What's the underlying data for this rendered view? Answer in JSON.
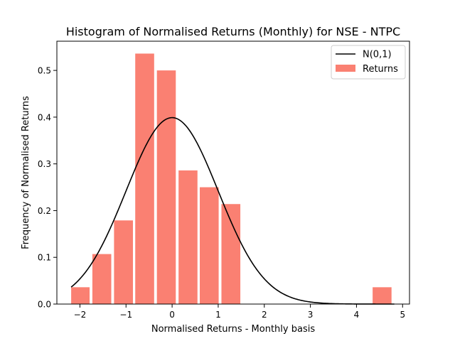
{
  "chart_data": {
    "type": "bar",
    "title": "Histogram of Normalised Returns (Monthly) for NSE - NTPC",
    "xlabel": "Normalised Returns - Monthly basis",
    "ylabel": "Frequency of Normalised Returns",
    "xlim": [
      -2.5,
      5.15
    ],
    "ylim": [
      0,
      0.5625
    ],
    "xticks": [
      -2,
      -1,
      0,
      1,
      2,
      3,
      4,
      5
    ],
    "xtick_labels": [
      "−2",
      "−1",
      "0",
      "1",
      "2",
      "3",
      "4",
      "5"
    ],
    "yticks": [
      0.0,
      0.1,
      0.2,
      0.3,
      0.4,
      0.5
    ],
    "ytick_labels": [
      "0.0",
      "0.1",
      "0.2",
      "0.3",
      "0.4",
      "0.5"
    ],
    "grid": false,
    "legend_position": "top-right",
    "series": [
      {
        "name": "Returns",
        "kind": "histogram",
        "color": "#fa8072",
        "bins": [
          {
            "x0": -2.19,
            "x1": -1.79,
            "value": 0.036
          },
          {
            "x0": -1.73,
            "x1": -1.32,
            "value": 0.107
          },
          {
            "x0": -1.26,
            "x1": -0.85,
            "value": 0.179
          },
          {
            "x0": -0.8,
            "x1": -0.39,
            "value": 0.536
          },
          {
            "x0": -0.33,
            "x1": 0.08,
            "value": 0.5
          },
          {
            "x0": 0.14,
            "x1": 0.55,
            "value": 0.286
          },
          {
            "x0": 0.6,
            "x1": 1.01,
            "value": 0.25
          },
          {
            "x0": 1.07,
            "x1": 1.48,
            "value": 0.214
          },
          {
            "x0": 4.35,
            "x1": 4.76,
            "value": 0.036
          }
        ]
      },
      {
        "name": "N(0,1)",
        "kind": "line",
        "color": "#000000",
        "function": "standard_normal_pdf",
        "x_range": [
          -2.19,
          4.82
        ]
      }
    ]
  }
}
